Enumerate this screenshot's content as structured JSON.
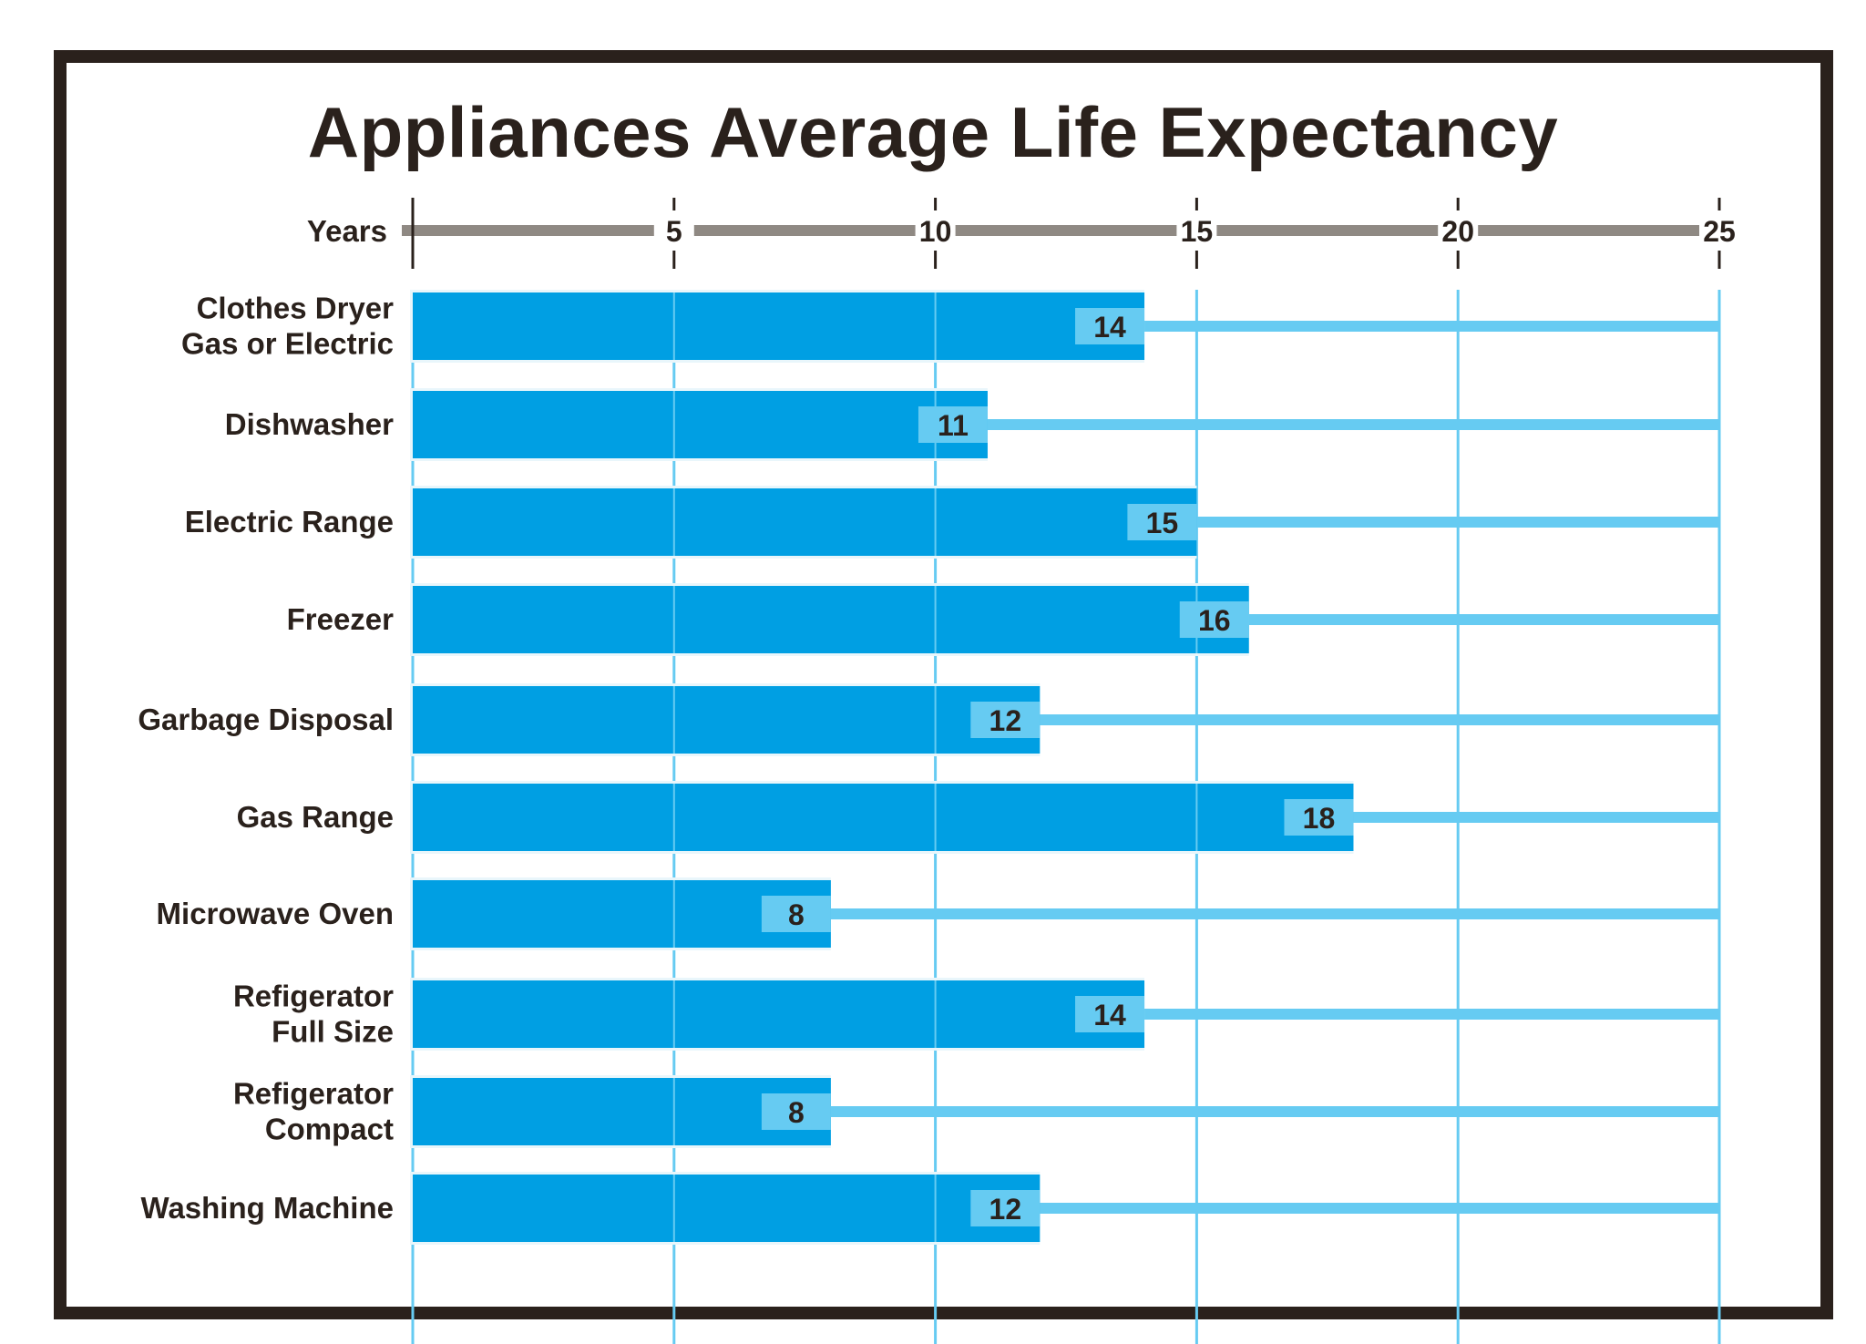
{
  "chart_data": {
    "type": "bar",
    "orientation": "horizontal",
    "title": "Appliances Average Life Expectancy",
    "xlabel": "Years",
    "xlim": [
      0,
      25
    ],
    "xticks": [
      "5",
      "10",
      "15",
      "20",
      "25"
    ],
    "xtick_values": [
      5,
      10,
      15,
      20,
      25
    ],
    "grid": true,
    "categories": [
      [
        "Clothes Dryer",
        "Gas or Electric"
      ],
      [
        "Dishwasher"
      ],
      [
        "Electric Range"
      ],
      [
        "Freezer"
      ],
      [
        "Garbage Disposal"
      ],
      [
        "Gas Range"
      ],
      [
        "Microwave Oven"
      ],
      [
        "Refigerator",
        "Full Size"
      ],
      [
        "Refigerator",
        "Compact"
      ],
      [
        "Washing Machine"
      ]
    ],
    "values": [
      14,
      11,
      15,
      16,
      12,
      18,
      8,
      14,
      8,
      12
    ],
    "colors": {
      "bar": "#009fe3",
      "label_box": "#66cbf2",
      "track": "#66cbf2",
      "axis": "#8f8983",
      "frame": "#2a211c"
    }
  }
}
